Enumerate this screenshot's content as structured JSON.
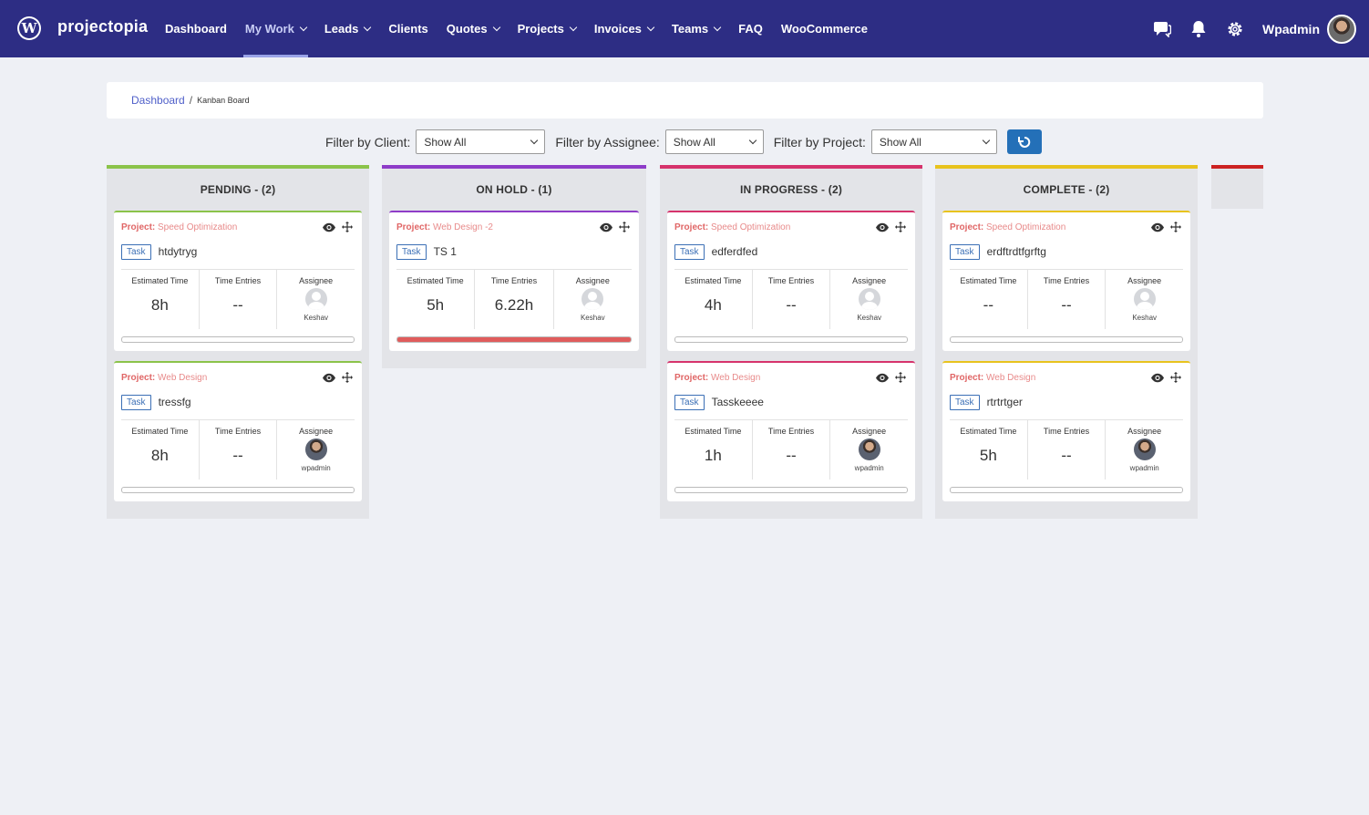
{
  "nav": {
    "brand": "projectopia",
    "items": [
      {
        "label": "Dashboard",
        "dropdown": false,
        "active": false
      },
      {
        "label": "My Work",
        "dropdown": true,
        "active": true
      },
      {
        "label": "Leads",
        "dropdown": true,
        "active": false
      },
      {
        "label": "Clients",
        "dropdown": false,
        "active": false
      },
      {
        "label": "Quotes",
        "dropdown": true,
        "active": false
      },
      {
        "label": "Projects",
        "dropdown": true,
        "active": false
      },
      {
        "label": "Invoices",
        "dropdown": true,
        "active": false
      },
      {
        "label": "Teams",
        "dropdown": true,
        "active": false
      },
      {
        "label": "FAQ",
        "dropdown": false,
        "active": false
      },
      {
        "label": "WooCommerce",
        "dropdown": false,
        "active": false
      }
    ],
    "user": "Wpadmin",
    "icons": [
      "chat-icon",
      "bell-icon",
      "gear-icon"
    ]
  },
  "breadcrumb": {
    "home": "Dashboard",
    "separator": "/",
    "current": "Kanban Board"
  },
  "filters": {
    "client": {
      "label": "Filter by Client:",
      "value": "Show All"
    },
    "assignee": {
      "label": "Filter by Assignee:",
      "value": "Show All"
    },
    "project": {
      "label": "Filter by Project:",
      "value": "Show All"
    }
  },
  "labels": {
    "project_prefix": "Project:",
    "task_badge": "Task",
    "estimated": "Estimated Time",
    "time_entries": "Time Entries",
    "assignee": "Assignee"
  },
  "columns": [
    {
      "title": "PENDING - (2)",
      "color": "#8bc34a",
      "cards": [
        {
          "project": "Speed Optimization",
          "task": "htdytryg",
          "estimated": "8h",
          "entries": "--",
          "assignee": "Keshav",
          "avatar": "placeholder",
          "progress": 0
        },
        {
          "project": "Web Design",
          "task": "tressfg",
          "estimated": "8h",
          "entries": "--",
          "assignee": "wpadmin",
          "avatar": "photo",
          "progress": 0
        }
      ]
    },
    {
      "title": "ON HOLD - (1)",
      "color": "#8e3cc8",
      "cards": [
        {
          "project": "Web Design -2",
          "task": "TS 1",
          "estimated": "5h",
          "entries": "6.22h",
          "assignee": "Keshav",
          "avatar": "placeholder",
          "progress": 1
        }
      ]
    },
    {
      "title": "IN PROGRESS - (2)",
      "color": "#d6336c",
      "cards": [
        {
          "project": "Speed Optimization",
          "task": "edferdfed",
          "estimated": "4h",
          "entries": "--",
          "assignee": "Keshav",
          "avatar": "placeholder",
          "progress": 0
        },
        {
          "project": "Web Design",
          "task": "Tasskeeee",
          "estimated": "1h",
          "entries": "--",
          "assignee": "wpadmin",
          "avatar": "photo",
          "progress": 0
        }
      ]
    },
    {
      "title": "COMPLETE - (2)",
      "color": "#e8c31e",
      "cards": [
        {
          "project": "Speed Optimization",
          "task": "erdftrdtfgrftg",
          "estimated": "--",
          "entries": "--",
          "assignee": "Keshav",
          "avatar": "placeholder",
          "progress": 0
        },
        {
          "project": "Web Design",
          "task": "rtrtrtger",
          "estimated": "5h",
          "entries": "--",
          "assignee": "wpadmin",
          "avatar": "photo",
          "progress": 0
        }
      ]
    }
  ],
  "extra_column_color": "#cc2222"
}
